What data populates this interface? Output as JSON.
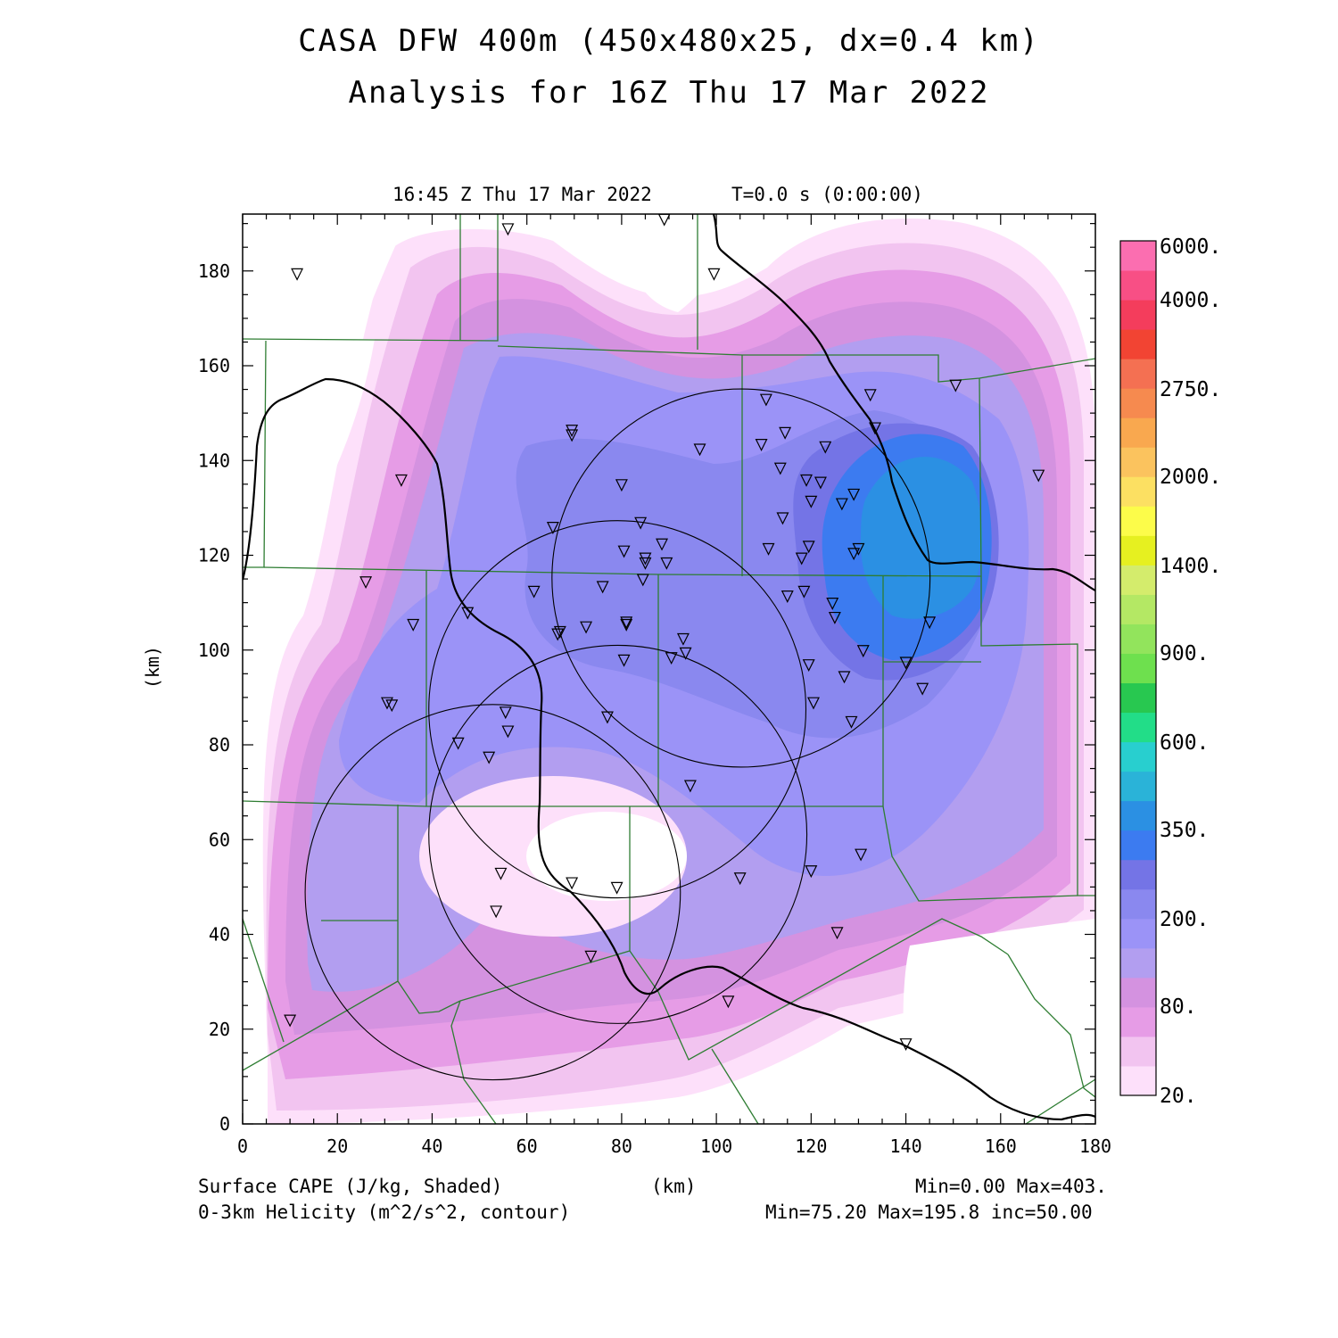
{
  "title_line1": "CASA DFW 400m (450x480x25, dx=0.4 km)",
  "title_line2": "Analysis for 16Z Thu 17 Mar 2022",
  "valid_time": "16:45 Z Thu 17 Mar 2022",
  "model_time": "T=0.0 s (0:00:00)",
  "axis_unit_y": "(km)",
  "axis_unit_x": "(km)",
  "x_ticks": [
    "0",
    "20",
    "40",
    "60",
    "80",
    "100",
    "120",
    "140",
    "160",
    "180"
  ],
  "y_ticks": [
    "0",
    "20",
    "40",
    "60",
    "80",
    "100",
    "120",
    "140",
    "160",
    "180"
  ],
  "colorbar_labels": [
    "6000.",
    "4000.",
    "2750.",
    "2000.",
    "1400.",
    "900.",
    "600.",
    "350.",
    "200.",
    "80.",
    "20."
  ],
  "colorbar_colors": [
    "#fde0fa",
    "#f2c4f0",
    "#e69ce6",
    "#d492e0",
    "#b29ef0",
    "#9b93f7",
    "#8a88ef",
    "#7474e6",
    "#3c7bf0",
    "#2b90e3",
    "#2ab3d8",
    "#28cfcf",
    "#22dd88",
    "#28c850",
    "#6ee04e",
    "#92e45c",
    "#b4e864",
    "#d4ec6c",
    "#e6f020",
    "#fcfc4a",
    "#fce062",
    "#fbc35e",
    "#f9a84f",
    "#f68a4f",
    "#f47052",
    "#f24433",
    "#f43d5c",
    "#f84f85",
    "#fb6eb0"
  ],
  "footer_left1": "Surface CAPE (J/kg, Shaded)",
  "footer_left2": "0-3km Helicity (m^2/s^2, contour)",
  "footer_mid": "(km)",
  "footer_right1": "Min=0.00 Max=403.",
  "footer_right2": "Min=75.20 Max=195.8 inc=50.00",
  "chart_data": {
    "type": "heatmap",
    "xlabel": "(km)",
    "ylabel": "(km)",
    "xlim": [
      0,
      180
    ],
    "ylim": [
      0,
      192
    ],
    "shaded_field": "Surface CAPE (J/kg, Shaded)",
    "shaded_min": 0.0,
    "shaded_max": 403.0,
    "contour_field": "0-3km Helicity (m^2/s^2, contour)",
    "contour_min": 75.2,
    "contour_max": 195.8,
    "contour_inc": 50.0,
    "colorbar_levels": [
      20,
      80,
      200,
      350,
      600,
      900,
      1400,
      2000,
      2750,
      4000,
      6000
    ],
    "radar_range_circles": [
      {
        "cx_km": 52.8,
        "cy_km": 48.9,
        "r_km": 39.6
      },
      {
        "cx_km": 79.1,
        "cy_km": 87.5,
        "r_km": 39.8
      },
      {
        "cx_km": 105.2,
        "cy_km": 115.2,
        "r_km": 39.9
      },
      {
        "cx_km": 79.2,
        "cy_km": 61.1,
        "r_km": 39.9
      }
    ],
    "stations_km": [
      [
        11.5,
        179.5
      ],
      [
        56,
        189
      ],
      [
        89,
        191
      ],
      [
        99.5,
        179.5
      ],
      [
        33.5,
        136
      ],
      [
        26,
        114.5
      ],
      [
        36,
        105.5
      ],
      [
        30.5,
        89
      ],
      [
        31.5,
        88.5
      ],
      [
        45.5,
        80.5
      ],
      [
        47.5,
        108
      ],
      [
        52,
        77.5
      ],
      [
        55.5,
        87
      ],
      [
        56,
        83
      ],
      [
        61.5,
        112.5
      ],
      [
        65.5,
        126
      ],
      [
        66.5,
        103.5
      ],
      [
        67,
        104
      ],
      [
        69.5,
        146.5
      ],
      [
        69.5,
        145.5
      ],
      [
        72.5,
        105
      ],
      [
        76,
        113.5
      ],
      [
        77,
        86
      ],
      [
        80,
        135
      ],
      [
        80.5,
        121
      ],
      [
        80.5,
        98
      ],
      [
        81,
        106
      ],
      [
        81,
        105.5
      ],
      [
        84,
        127
      ],
      [
        84.5,
        115
      ],
      [
        85,
        119.5
      ],
      [
        85,
        118.5
      ],
      [
        88.5,
        122.5
      ],
      [
        89.5,
        118.5
      ],
      [
        90.5,
        98.5
      ],
      [
        93,
        102.5
      ],
      [
        93.5,
        99.5
      ],
      [
        94.5,
        71.5
      ],
      [
        96.5,
        142.5
      ],
      [
        102.5,
        26
      ],
      [
        105,
        52
      ],
      [
        109.5,
        143.5
      ],
      [
        110.5,
        153
      ],
      [
        111,
        121.5
      ],
      [
        113.5,
        138.5
      ],
      [
        114,
        128
      ],
      [
        114.5,
        146
      ],
      [
        115,
        111.5
      ],
      [
        118,
        119.5
      ],
      [
        118.5,
        112.5
      ],
      [
        119,
        136
      ],
      [
        119.5,
        122
      ],
      [
        119.5,
        97
      ],
      [
        120,
        131.5
      ],
      [
        120,
        53.5
      ],
      [
        120.5,
        89
      ],
      [
        122,
        135.5
      ],
      [
        123,
        143
      ],
      [
        124.5,
        110
      ],
      [
        125,
        107
      ],
      [
        125.5,
        40.5
      ],
      [
        126.5,
        131
      ],
      [
        127,
        94.5
      ],
      [
        128.5,
        85
      ],
      [
        129,
        120.5
      ],
      [
        129,
        133
      ],
      [
        130,
        121.5
      ],
      [
        130.5,
        57
      ],
      [
        131,
        100
      ],
      [
        132.5,
        154
      ],
      [
        133.5,
        147
      ],
      [
        140,
        17
      ],
      [
        140,
        97.5
      ],
      [
        143.5,
        92
      ],
      [
        145,
        106
      ],
      [
        150.5,
        156
      ],
      [
        168,
        137
      ],
      [
        10,
        22
      ],
      [
        53.5,
        45
      ],
      [
        54.5,
        53
      ],
      [
        69.5,
        51
      ],
      [
        73.5,
        35.5
      ],
      [
        79,
        50
      ]
    ]
  }
}
